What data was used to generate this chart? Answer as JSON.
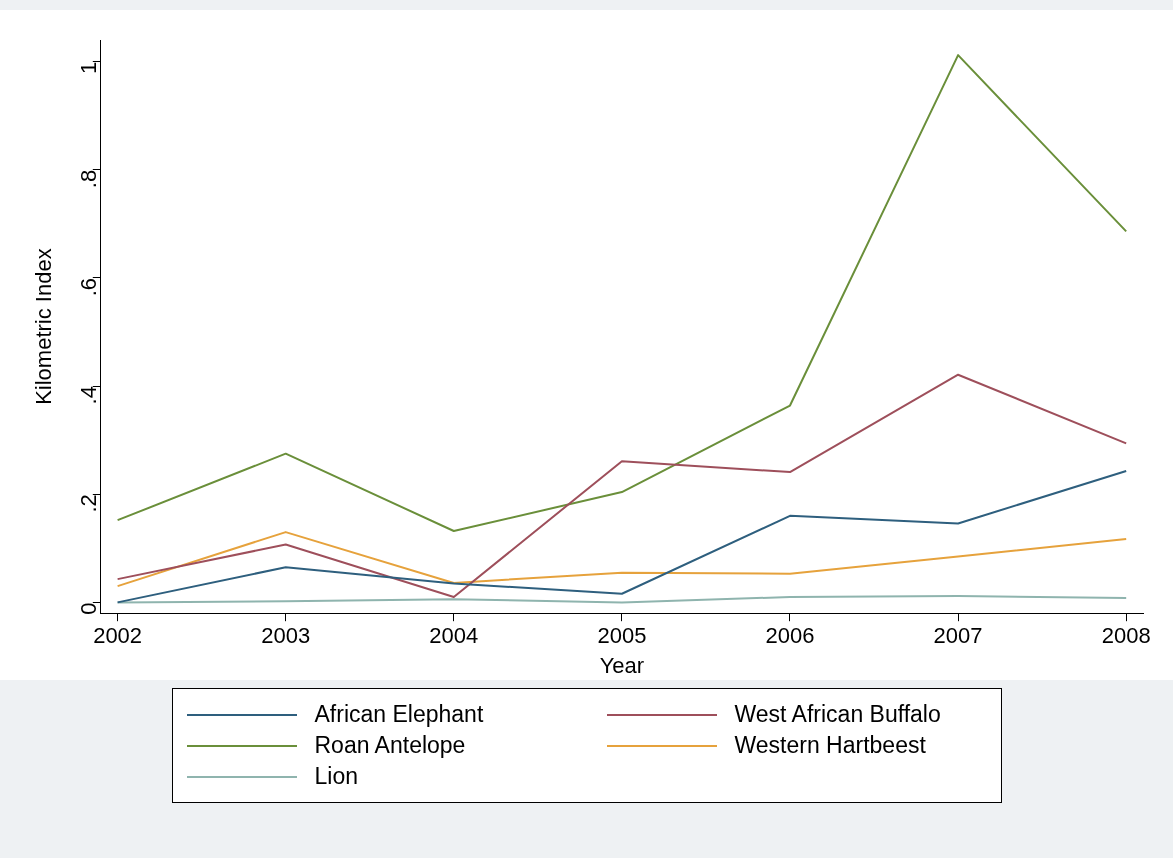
{
  "chart_data": {
    "type": "line",
    "xlabel": "Year",
    "ylabel": "Kilometric Index",
    "x": [
      2002,
      2003,
      2004,
      2005,
      2006,
      2007,
      2008
    ],
    "series": [
      {
        "name": "African Elephant",
        "color": "#2e5f7e",
        "values": [
          0,
          0.065,
          0.035,
          0.016,
          0.16,
          0.146,
          0.243
        ]
      },
      {
        "name": "West African Buffalo",
        "color": "#9e4f5b",
        "values": [
          0.043,
          0.107,
          0.01,
          0.261,
          0.241,
          0.421,
          0.294
        ]
      },
      {
        "name": "Roan Antelope",
        "color": "#6a8f3a",
        "values": [
          0.152,
          0.275,
          0.132,
          0.204,
          0.364,
          1.012,
          0.686
        ]
      },
      {
        "name": "Western Hartbeest",
        "color": "#e6a23c",
        "values": [
          0.03,
          0.13,
          0.036,
          0.055,
          0.053,
          0.085,
          0.117
        ]
      },
      {
        "name": "Lion",
        "color": "#8fb4ae",
        "values": [
          0,
          0.002,
          0.006,
          0,
          0.01,
          0.012,
          0.008
        ]
      }
    ],
    "xlim": [
      2001.9,
      2008.1
    ],
    "xticks": [
      2002,
      2003,
      2004,
      2005,
      2006,
      2007,
      2008
    ],
    "ylim": [
      -0.02,
      1.04
    ],
    "yticks": [
      0,
      {
        "value": 0.2,
        "label": ".2"
      },
      {
        "value": 0.4,
        "label": ".4"
      },
      {
        "value": 0.6,
        "label": ".6"
      },
      {
        "value": 0.8,
        "label": ".8"
      },
      1
    ],
    "grid": false,
    "legend": "bottom",
    "marker": "none",
    "line_style": "solid"
  }
}
